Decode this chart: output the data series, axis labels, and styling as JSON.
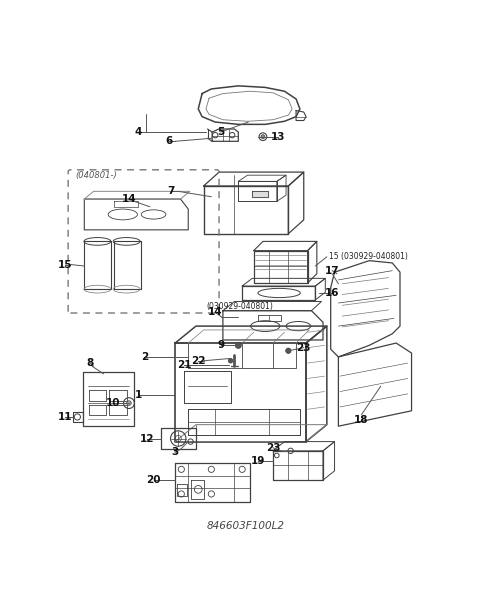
{
  "title": "846603F100L2",
  "bg_color": "#ffffff",
  "lc": "#404040",
  "figsize": [
    4.8,
    6.0
  ],
  "dpi": 100,
  "xlim": [
    0,
    480
  ],
  "ylim": [
    0,
    600
  ]
}
